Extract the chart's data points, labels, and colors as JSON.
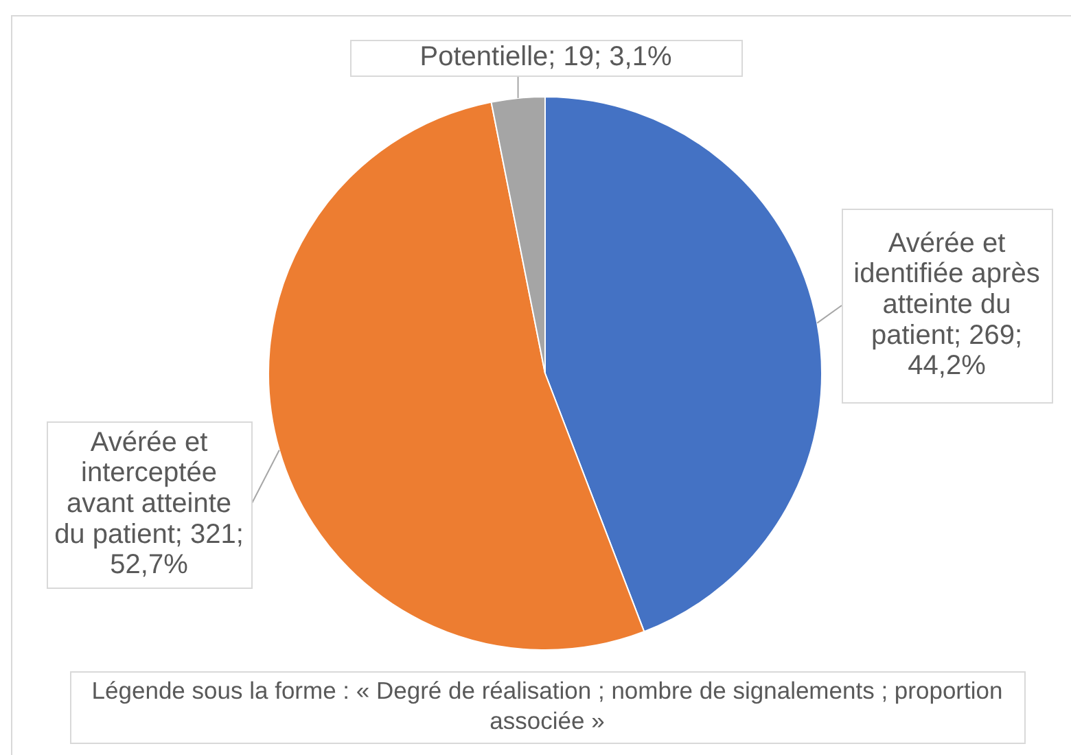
{
  "chart_data": {
    "type": "pie",
    "categories": [
      "Avérée et identifiée après atteinte du patient",
      "Avérée et interceptée avant atteinte du patient",
      "Potentielle"
    ],
    "values": [
      269,
      321,
      19
    ],
    "colors": [
      "#4472c4",
      "#ed7d31",
      "#a5a5a5"
    ],
    "value_labels": [
      "269; 44,2%",
      "321; 52,7%",
      "19; 3,1%"
    ],
    "annotations": [
      "Légende sous la forme : « Degré de réalisation ; nombre de signalements ; proportion associée »"
    ]
  }
}
